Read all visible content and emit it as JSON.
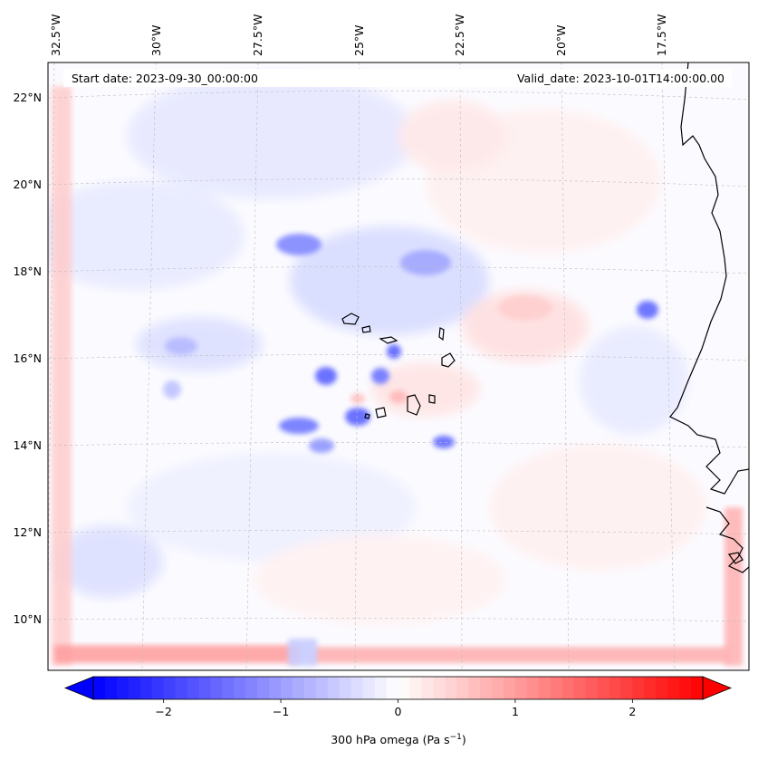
{
  "header": {
    "start_date": "Start date: 2023-09-30_00:00:00",
    "valid_date": "Valid_date: 2023-10-01T14:00:00.00"
  },
  "map": {
    "lon_labels": [
      "32.5°W",
      "30°W",
      "27.5°W",
      "25°W",
      "22.5°W",
      "20°W",
      "17.5°W"
    ],
    "lat_labels": [
      "22°N",
      "20°N",
      "18°N",
      "16°N",
      "14°N",
      "12°N",
      "10°N"
    ],
    "lon_values": [
      -32.5,
      -30,
      -27.5,
      -25,
      -22.5,
      -20,
      -17.5
    ],
    "lat_values": [
      22,
      20,
      18,
      16,
      14,
      12,
      10
    ],
    "field": "300 hPa omega",
    "gridlines": true
  },
  "colorbar": {
    "label_main": "300 hPa omega (Pa s",
    "label_sup": "−1",
    "label_close": ")",
    "ticks": [
      "−2",
      "−1",
      "0",
      "1",
      "2"
    ],
    "tick_values": [
      -2,
      -1,
      0,
      1,
      2
    ],
    "range": [
      -2.6,
      2.6
    ],
    "colormap": "bwr",
    "extend": "both",
    "colors": {
      "low": "#0000ff",
      "mid": "#ffffff",
      "high": "#ff0000"
    }
  }
}
